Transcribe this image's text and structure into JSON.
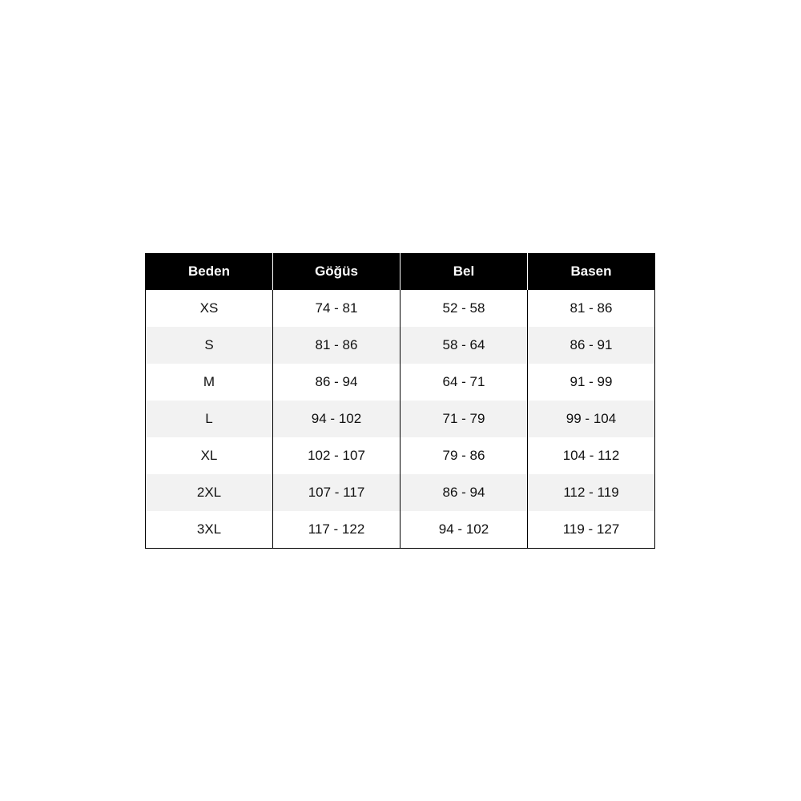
{
  "table": {
    "headers": [
      "Beden",
      "Göğüs",
      "Bel",
      "Basen"
    ],
    "rows": [
      [
        "XS",
        "74 - 81",
        "52 - 58",
        "81 - 86"
      ],
      [
        "S",
        "81 - 86",
        "58 - 64",
        "86 - 91"
      ],
      [
        "M",
        "86 - 94",
        "64 - 71",
        "91 - 99"
      ],
      [
        "L",
        "94 - 102",
        "71 - 79",
        "99 - 104"
      ],
      [
        "XL",
        "102 - 107",
        "79 - 86",
        "104 - 112"
      ],
      [
        "2XL",
        "107 - 117",
        "86 - 94",
        "112 - 119"
      ],
      [
        "3XL",
        "117 - 122",
        "94 - 102",
        "119 - 127"
      ]
    ]
  },
  "colors": {
    "header_bg": "#000000",
    "header_text": "#ffffff",
    "alt_row_bg": "#f2f2f2"
  }
}
